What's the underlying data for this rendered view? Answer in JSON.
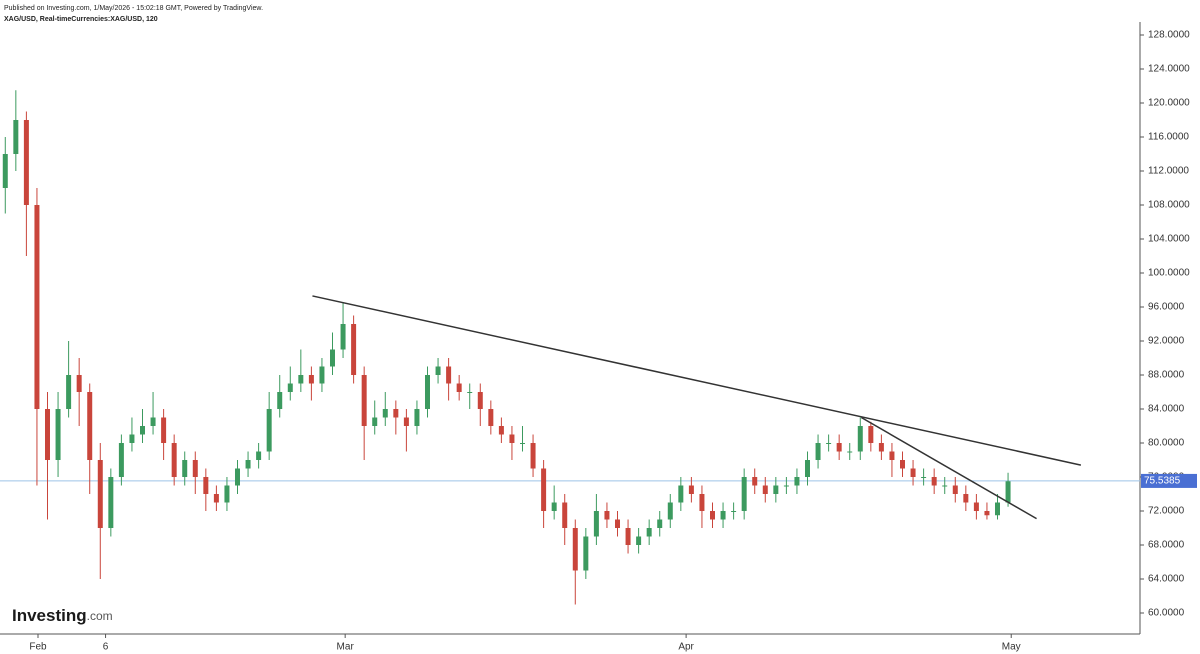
{
  "header": {
    "published": "Published on Investing.com, 1/May/2026 - 15:02:18 GMT, Powered by TradingView.",
    "symbol": "XAG/USD, Real-timeCurrencies:XAG/USD, 120"
  },
  "logo": {
    "brand": "Investing",
    "suffix": ".com"
  },
  "chart_data": {
    "type": "candlestick",
    "up_color": "#3c9a5f",
    "down_color": "#c9453b",
    "last_price": 75.5385,
    "last_price_label": "75.5385",
    "last_price_color": "#4a6fd3",
    "xlim": [
      -0.5,
      107.5
    ],
    "ylim": [
      60,
      128
    ],
    "xticks": [
      {
        "value": 3.1,
        "label": "Feb"
      },
      {
        "value": 9.5,
        "label": "6"
      },
      {
        "value": 32.2,
        "label": "Mar"
      },
      {
        "value": 64.5,
        "label": "Apr"
      },
      {
        "value": 95.3,
        "label": "May"
      }
    ],
    "yticks": [
      {
        "value": 60,
        "label": "60.0000"
      },
      {
        "value": 64,
        "label": "64.0000"
      },
      {
        "value": 68,
        "label": "68.0000"
      },
      {
        "value": 72,
        "label": "72.0000"
      },
      {
        "value": 76,
        "label": "76.0000"
      },
      {
        "value": 80,
        "label": "80.0000"
      },
      {
        "value": 84,
        "label": "84.0000"
      },
      {
        "value": 88,
        "label": "88.0000"
      },
      {
        "value": 92,
        "label": "92.0000"
      },
      {
        "value": 96,
        "label": "96.0000"
      },
      {
        "value": 100,
        "label": "100.0000"
      },
      {
        "value": 104,
        "label": "104.0000"
      },
      {
        "value": 108,
        "label": "108.0000"
      },
      {
        "value": 112,
        "label": "112.0000"
      },
      {
        "value": 116,
        "label": "116.0000"
      },
      {
        "value": 120,
        "label": "120.0000"
      },
      {
        "value": 124,
        "label": "124.0000"
      },
      {
        "value": 128,
        "label": "128.0000"
      }
    ],
    "trendlines": [
      {
        "x": [
          29.1,
          101.9
        ],
        "y": [
          97.3,
          77.4
        ]
      },
      {
        "x": [
          81.1,
          97.7
        ],
        "y": [
          83,
          71.1
        ]
      }
    ],
    "open": [
      110,
      114,
      118,
      108,
      84,
      78,
      84,
      88,
      86,
      78,
      70,
      76,
      80,
      81,
      82,
      83,
      80,
      76,
      78,
      76,
      74,
      73,
      75,
      77,
      78,
      79,
      84,
      86,
      87,
      88,
      87,
      89,
      91,
      94,
      88,
      82,
      83,
      84,
      83,
      82,
      84,
      88,
      89,
      87,
      86,
      86,
      84,
      82,
      81,
      80,
      80,
      77,
      72,
      73,
      70,
      65,
      69,
      72,
      71,
      70,
      68,
      69,
      70,
      71,
      73,
      75,
      74,
      72,
      71,
      72,
      72,
      76,
      75,
      74,
      75,
      75,
      76,
      78,
      80,
      80,
      79,
      79,
      82,
      80,
      79,
      78,
      77,
      76,
      76,
      75,
      75,
      74,
      73,
      72,
      71.5,
      73
    ],
    "high": [
      116,
      121.5,
      119,
      110,
      86,
      86,
      92,
      90,
      87,
      80,
      77,
      81,
      83,
      84,
      86,
      84,
      81,
      79,
      79,
      77,
      75,
      76,
      78,
      79,
      80,
      86,
      88,
      89,
      91,
      89,
      90,
      93,
      96.5,
      95,
      89,
      85,
      86,
      85,
      84,
      85,
      89,
      90,
      90,
      88,
      87,
      87,
      85,
      83,
      82,
      82,
      81,
      78,
      75,
      74,
      71,
      70,
      74,
      73,
      72,
      71,
      70,
      71,
      72,
      74,
      76,
      76,
      75,
      73,
      73,
      73,
      77,
      77,
      76,
      76,
      76,
      77,
      79,
      81,
      81,
      81,
      80,
      83,
      82.5,
      81,
      80,
      79,
      78,
      77,
      77,
      76,
      76,
      75,
      74,
      73,
      74,
      76.5
    ],
    "low": [
      107,
      112,
      102,
      75,
      71,
      76,
      83,
      82,
      74,
      64,
      69,
      75,
      79,
      80,
      81,
      78,
      75,
      75,
      74,
      72,
      72,
      72,
      74,
      76,
      77,
      78,
      83,
      85,
      86,
      85,
      86,
      88,
      90,
      87,
      78,
      81,
      82,
      81,
      79,
      81,
      83,
      87,
      85,
      85,
      84,
      82,
      81,
      80,
      78,
      79,
      76,
      70,
      71,
      68,
      61,
      64,
      68,
      70,
      69,
      67,
      67,
      68,
      69,
      70,
      72,
      73,
      70,
      70,
      70,
      71,
      71,
      74,
      73,
      73,
      74,
      74,
      75,
      77,
      79,
      78,
      78,
      78,
      79,
      78,
      76,
      76,
      75,
      75,
      74,
      74,
      73,
      72,
      71,
      71,
      71,
      72.5
    ],
    "close": [
      114,
      118,
      108,
      84,
      78,
      84,
      88,
      86,
      78,
      70,
      76,
      80,
      81,
      82,
      83,
      80,
      76,
      78,
      76,
      74,
      73,
      75,
      77,
      78,
      79,
      84,
      86,
      87,
      88,
      87,
      89,
      91,
      94,
      88,
      82,
      83,
      84,
      83,
      82,
      84,
      88,
      89,
      87,
      86,
      86,
      84,
      82,
      81,
      80,
      80,
      77,
      72,
      73,
      70,
      65,
      69,
      72,
      71,
      70,
      68,
      69,
      70,
      71,
      73,
      75,
      74,
      72,
      71,
      72,
      72,
      76,
      75,
      74,
      75,
      75,
      76,
      78,
      80,
      80,
      79,
      79,
      82,
      80,
      79,
      78,
      77,
      76,
      76,
      75,
      75,
      74,
      73,
      72,
      71.5,
      73,
      75.5
    ]
  }
}
